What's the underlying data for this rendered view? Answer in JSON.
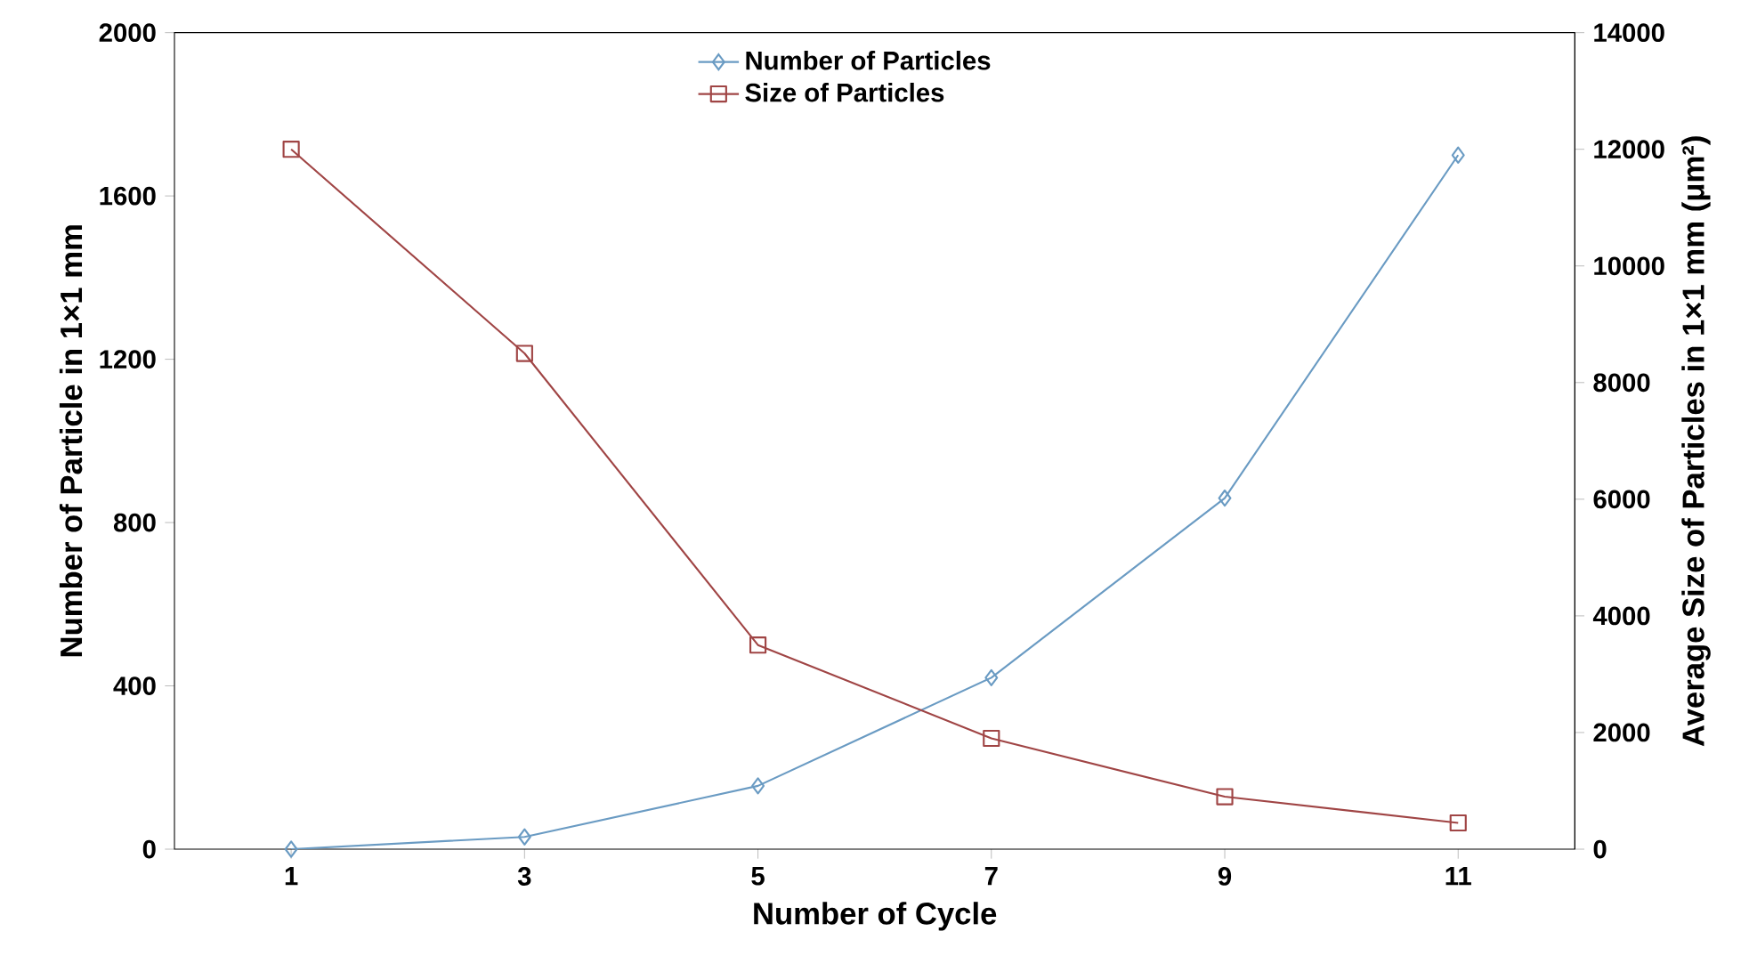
{
  "chart_data": {
    "type": "line",
    "xlabel": "Number of Cycle",
    "ylabel": "Number of Particle in 1×1 mm",
    "y2label": "Average Size of Particles in 1×1 mm (μm²)",
    "x": [
      1,
      3,
      5,
      7,
      9,
      11
    ],
    "series": [
      {
        "name": "Number of Particles",
        "color": "#6a9bc3",
        "marker": "diamond",
        "values": [
          0,
          30,
          155,
          420,
          860,
          1700
        ]
      },
      {
        "name": "Size of Particles",
        "color": "#a04545",
        "marker": "square",
        "axis": "y2",
        "values": [
          12000,
          8500,
          3500,
          1900,
          900,
          450
        ]
      }
    ],
    "xlim": [
      0,
      12
    ],
    "xticks": [
      1,
      3,
      5,
      7,
      9,
      11
    ],
    "ylim": [
      0,
      2000
    ],
    "yticks": [
      0,
      400,
      800,
      1200,
      1600,
      2000
    ],
    "y2lim": [
      0,
      14000
    ],
    "y2ticks": [
      0,
      2000,
      4000,
      6000,
      8000,
      10000,
      12000,
      14000
    ],
    "legend": "top",
    "grid": false,
    "line_style": "solid"
  }
}
